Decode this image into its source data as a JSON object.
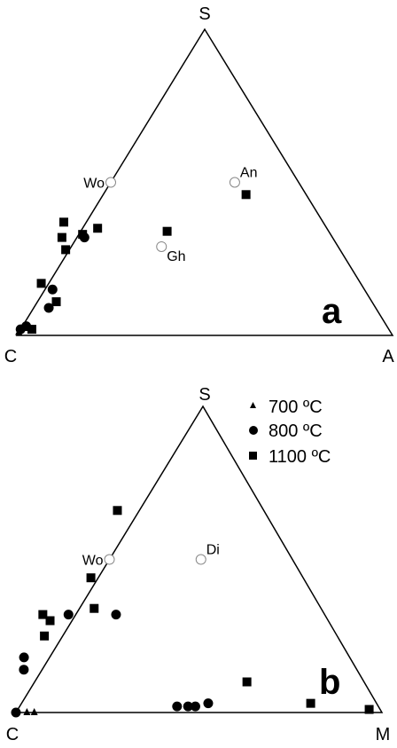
{
  "legend": [
    {
      "symbol": "triangle",
      "label": "700 ºC"
    },
    {
      "symbol": "circle",
      "label": "800 ºC"
    },
    {
      "symbol": "square",
      "label": "1100 ºC"
    }
  ],
  "chart_data": [
    {
      "type": "scatter",
      "subtype": "ternary",
      "panel_label": "a",
      "vertices": {
        "top": "S",
        "left": "C",
        "right": "A"
      },
      "reference_minerals": [
        {
          "label": "Wo",
          "C": 0.5,
          "S": 0.5,
          "A": 0.0
        },
        {
          "label": "An",
          "C": 0.17,
          "S": 0.5,
          "A": 0.33
        },
        {
          "label": "Gh",
          "C": 0.47,
          "S": 0.29,
          "A": 0.24
        }
      ],
      "series": [
        {
          "temperature": "700 ºC",
          "symbol": "triangle",
          "points": [
            {
              "C": 0.99,
              "S": 0.01,
              "A": 0.0
            }
          ]
        },
        {
          "temperature": "800 ºC",
          "symbol": "circle",
          "points": [
            {
              "C": 0.98,
              "S": 0.02,
              "A": 0.0
            },
            {
              "C": 0.96,
              "S": 0.03,
              "A": 0.01
            },
            {
              "C": 0.87,
              "S": 0.09,
              "A": 0.04
            },
            {
              "C": 0.83,
              "S": 0.15,
              "A": 0.02
            },
            {
              "C": 0.66,
              "S": 0.32,
              "A": 0.02
            }
          ]
        },
        {
          "temperature": "1100 ºC",
          "symbol": "square",
          "points": [
            {
              "C": 0.95,
              "S": 0.02,
              "A": 0.03
            },
            {
              "C": 0.84,
              "S": 0.11,
              "A": 0.05
            },
            {
              "C": 0.85,
              "S": 0.17,
              "A": -0.02
            },
            {
              "C": 0.72,
              "S": 0.32,
              "A": -0.04
            },
            {
              "C": 0.73,
              "S": 0.28,
              "A": -0.01
            },
            {
              "C": 0.69,
              "S": 0.37,
              "A": -0.06
            },
            {
              "C": 0.66,
              "S": 0.33,
              "A": 0.01
            },
            {
              "C": 0.61,
              "S": 0.35,
              "A": 0.04
            },
            {
              "C": 0.43,
              "S": 0.34,
              "A": 0.23
            },
            {
              "C": 0.16,
              "S": 0.46,
              "A": 0.38
            }
          ]
        }
      ]
    },
    {
      "type": "scatter",
      "subtype": "ternary",
      "panel_label": "b",
      "vertices": {
        "top": "S",
        "left": "C",
        "right": "M"
      },
      "reference_minerals": [
        {
          "label": "Wo",
          "C": 0.5,
          "S": 0.5,
          "M": 0.0
        },
        {
          "label": "Di",
          "C": 0.25,
          "S": 0.5,
          "M": 0.25
        }
      ],
      "series": [
        {
          "temperature": "700 ºC",
          "symbol": "triangle",
          "points": [
            {
              "C": 0.97,
              "S": 0.0,
              "M": 0.03
            },
            {
              "C": 0.95,
              "S": 0.0,
              "M": 0.05
            }
          ]
        },
        {
          "temperature": "800 ºC",
          "symbol": "circle",
          "points": [
            {
              "C": 1.0,
              "S": 0.0,
              "M": 0.0
            },
            {
              "C": 0.91,
              "S": 0.14,
              "M": -0.05
            },
            {
              "C": 0.89,
              "S": 0.18,
              "M": -0.07
            },
            {
              "C": 0.7,
              "S": 0.32,
              "M": -0.02
            },
            {
              "C": 0.57,
              "S": 0.32,
              "M": 0.11
            },
            {
              "C": 0.55,
              "S": 0.02,
              "M": 0.43
            },
            {
              "C": 0.52,
              "S": 0.02,
              "M": 0.46
            },
            {
              "C": 0.5,
              "S": 0.02,
              "M": 0.48
            },
            {
              "C": 0.46,
              "S": 0.03,
              "M": 0.51
            }
          ]
        },
        {
          "temperature": "1100 ºC",
          "symbol": "square",
          "points": [
            {
              "C": 0.77,
              "S": 0.32,
              "M": -0.09
            },
            {
              "C": 0.76,
              "S": 0.3,
              "M": -0.06
            },
            {
              "C": 0.8,
              "S": 0.25,
              "M": -0.05
            },
            {
              "C": 0.62,
              "S": 0.34,
              "M": 0.04
            },
            {
              "C": 0.58,
              "S": 0.44,
              "M": -0.02
            },
            {
              "C": 0.4,
              "S": 0.66,
              "M": -0.06
            },
            {
              "C": 0.32,
              "S": 0.1,
              "M": 0.58
            },
            {
              "C": 0.18,
              "S": 0.03,
              "M": 0.79
            },
            {
              "C": 0.03,
              "S": 0.01,
              "M": 0.96
            }
          ]
        }
      ]
    }
  ]
}
